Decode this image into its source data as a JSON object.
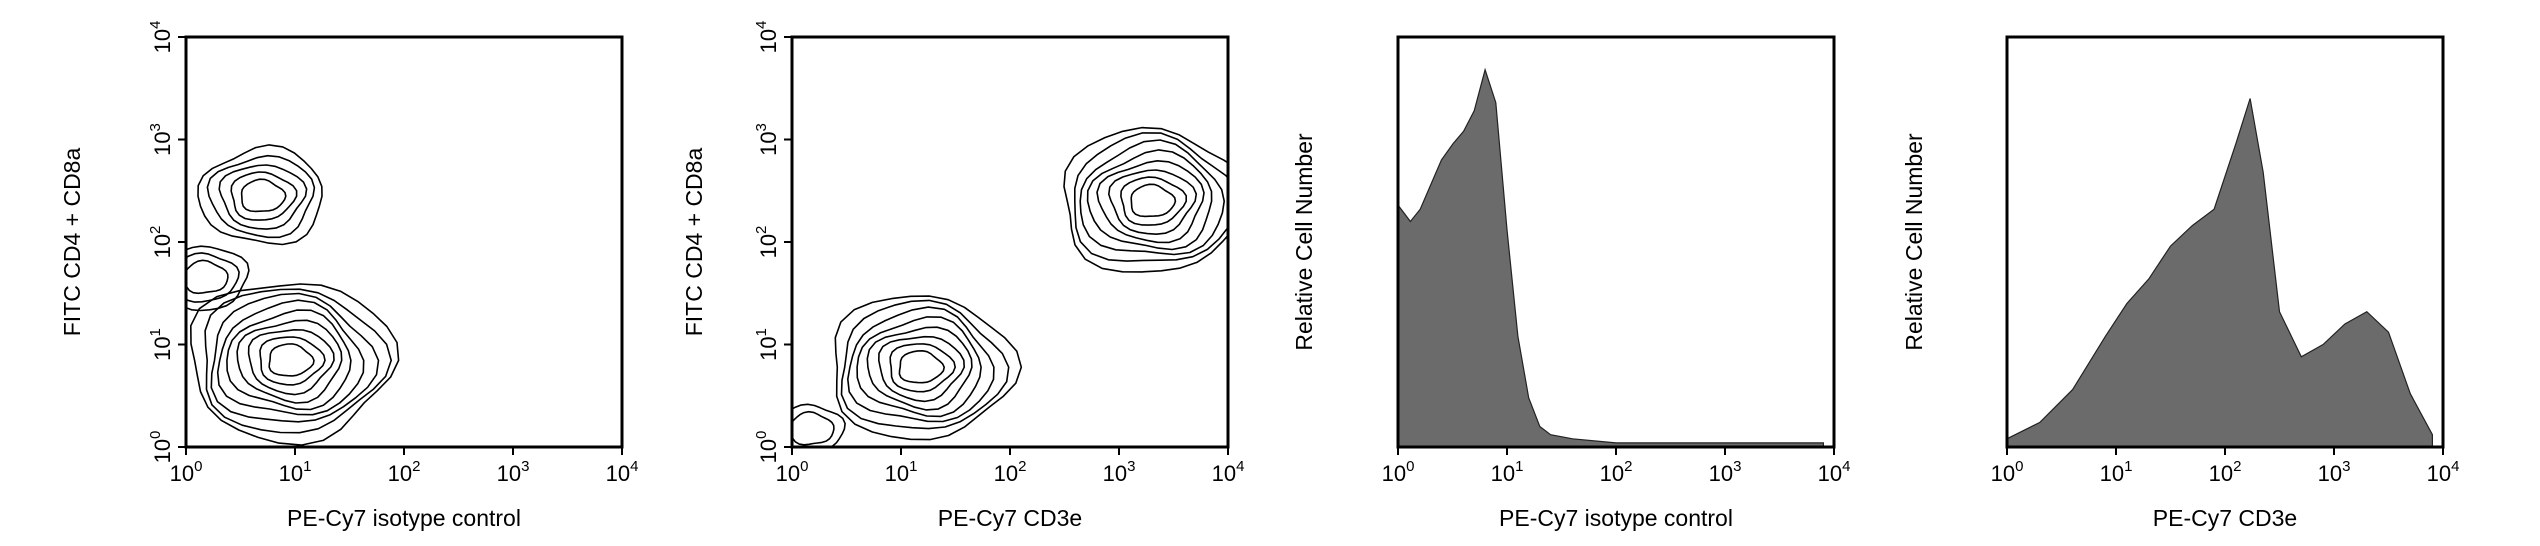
{
  "chart_data": [
    {
      "type": "contour",
      "xlabel": "PE-Cy7 isotype control",
      "ylabel": "FITC CD4 + CD8a",
      "xscale": "log",
      "yscale": "log",
      "xlim": [
        1,
        10000
      ],
      "ylim": [
        1,
        10000
      ],
      "xticks": [
        "10^0",
        "10^1",
        "10^2",
        "10^3",
        "10^4"
      ],
      "yticks": [
        "10^0",
        "10^1",
        "10^2",
        "10^3",
        "10^4"
      ],
      "peaks": [
        {
          "x": 9,
          "y": 7,
          "levels": 9
        },
        {
          "x": 5,
          "y": 280,
          "levels": 5
        },
        {
          "x": 1.5,
          "y": 45,
          "levels": 3
        }
      ]
    },
    {
      "type": "contour",
      "xlabel": "PE-Cy7 CD3e",
      "ylabel": "FITC CD4 + CD8a",
      "xscale": "log",
      "yscale": "log",
      "xlim": [
        1,
        10000
      ],
      "ylim": [
        1,
        10000
      ],
      "xticks": [
        "10^0",
        "10^1",
        "10^2",
        "10^3",
        "10^4"
      ],
      "yticks": [
        "10^0",
        "10^1",
        "10^2",
        "10^3",
        "10^4"
      ],
      "peaks": [
        {
          "x": 15,
          "y": 6,
          "levels": 8
        },
        {
          "x": 2000,
          "y": 250,
          "levels": 8
        },
        {
          "x": 1.5,
          "y": 1.5,
          "levels": 2
        }
      ]
    },
    {
      "type": "histogram",
      "xlabel": "PE-Cy7 isotype control",
      "ylabel": "Relative Cell Number",
      "xscale": "log",
      "xlim": [
        1,
        10000
      ],
      "xticks": [
        "10^0",
        "10^1",
        "10^2",
        "10^3",
        "10^4"
      ],
      "bins": [
        {
          "x": 1.0,
          "y": 0.59
        },
        {
          "x": 1.3,
          "y": 0.55
        },
        {
          "x": 1.6,
          "y": 0.58
        },
        {
          "x": 2.0,
          "y": 0.64
        },
        {
          "x": 2.5,
          "y": 0.7
        },
        {
          "x": 3.2,
          "y": 0.74
        },
        {
          "x": 4.0,
          "y": 0.77
        },
        {
          "x": 5.0,
          "y": 0.82
        },
        {
          "x": 6.3,
          "y": 0.92
        },
        {
          "x": 7.9,
          "y": 0.84
        },
        {
          "x": 10.0,
          "y": 0.53
        },
        {
          "x": 12.6,
          "y": 0.27
        },
        {
          "x": 15.8,
          "y": 0.12
        },
        {
          "x": 20.0,
          "y": 0.05
        },
        {
          "x": 25.1,
          "y": 0.03
        },
        {
          "x": 40.0,
          "y": 0.02
        },
        {
          "x": 100.0,
          "y": 0.01
        },
        {
          "x": 1000.0,
          "y": 0.01
        },
        {
          "x": 8000.0,
          "y": 0.01
        }
      ]
    },
    {
      "type": "histogram",
      "xlabel": "PE-Cy7 CD3e",
      "ylabel": "Relative Cell Number",
      "xscale": "log",
      "xlim": [
        1,
        10000
      ],
      "xticks": [
        "10^0",
        "10^1",
        "10^2",
        "10^3",
        "10^4"
      ],
      "bins": [
        {
          "x": 1.0,
          "y": 0.02
        },
        {
          "x": 2.0,
          "y": 0.06
        },
        {
          "x": 4.0,
          "y": 0.14
        },
        {
          "x": 8.0,
          "y": 0.27
        },
        {
          "x": 12.6,
          "y": 0.35
        },
        {
          "x": 20.0,
          "y": 0.41
        },
        {
          "x": 31.6,
          "y": 0.49
        },
        {
          "x": 50.1,
          "y": 0.54
        },
        {
          "x": 79.4,
          "y": 0.58
        },
        {
          "x": 126.0,
          "y": 0.74
        },
        {
          "x": 170.0,
          "y": 0.85
        },
        {
          "x": 224.0,
          "y": 0.67
        },
        {
          "x": 316.0,
          "y": 0.33
        },
        {
          "x": 501.0,
          "y": 0.22
        },
        {
          "x": 794.0,
          "y": 0.25
        },
        {
          "x": 1259.0,
          "y": 0.3
        },
        {
          "x": 2000.0,
          "y": 0.33
        },
        {
          "x": 3162.0,
          "y": 0.28
        },
        {
          "x": 5012.0,
          "y": 0.13
        },
        {
          "x": 8000.0,
          "y": 0.03
        }
      ]
    }
  ]
}
